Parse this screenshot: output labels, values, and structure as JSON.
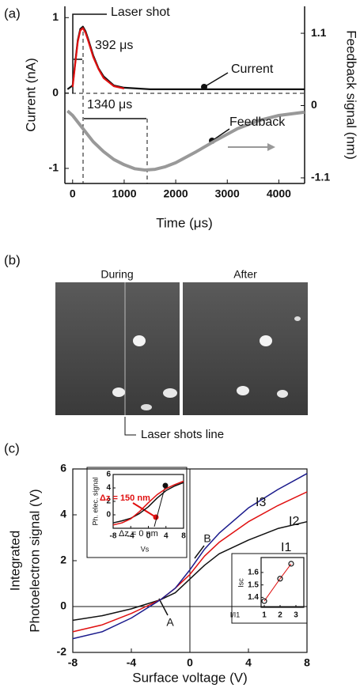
{
  "chart_data": [
    {
      "type": "line",
      "panel_label": "(a)",
      "xlabel": "Time (μs)",
      "ylabel": "Current (nA)",
      "y2label": "Feedback signal (nm)",
      "xlim": [
        -150,
        4500
      ],
      "xticks": [
        0,
        1000,
        2000,
        3000,
        4000
      ],
      "ylim": [
        -1.2,
        1.15
      ],
      "yticks": [
        -1,
        0,
        1
      ],
      "y2lim": [
        -1.185,
        1.51
      ],
      "y2ticks": [
        -1.1,
        0,
        1.1
      ],
      "annotations": [
        "Laser shot",
        "392 μs",
        "1340 μs",
        "Current",
        "Feedback"
      ],
      "series": [
        {
          "name": "Current",
          "color": "#111111",
          "x": [
            -100,
            0,
            50,
            100,
            150,
            200,
            250,
            300,
            400,
            500,
            600,
            800,
            1000,
            1500,
            2000,
            2500,
            3000,
            3500,
            4000,
            4500
          ],
          "values": [
            0.05,
            0.1,
            0.4,
            0.7,
            0.85,
            0.88,
            0.82,
            0.72,
            0.5,
            0.33,
            0.22,
            0.1,
            0.07,
            0.05,
            0.05,
            0.05,
            0.05,
            0.05,
            0.05,
            0.05
          ]
        },
        {
          "color": "#e01010",
          "x": [
            0,
            50,
            100,
            150,
            200,
            250,
            300,
            400,
            500,
            600,
            800,
            1000
          ],
          "values": [
            0.08,
            0.38,
            0.68,
            0.83,
            0.86,
            0.8,
            0.7,
            0.48,
            0.32,
            0.2,
            0.09,
            0.06
          ]
        },
        {
          "name": "Feedback",
          "color": "#999999",
          "axis": "y2",
          "x": [
            -100,
            0,
            200,
            400,
            600,
            800,
            1000,
            1200,
            1400,
            1600,
            1800,
            2000,
            2400,
            2800,
            3200,
            3600,
            4000,
            4500
          ],
          "values": [
            -0.08,
            -0.15,
            -0.35,
            -0.55,
            -0.7,
            -0.82,
            -0.9,
            -0.96,
            -0.98,
            -0.97,
            -0.93,
            -0.87,
            -0.7,
            -0.52,
            -0.35,
            -0.23,
            -0.15,
            -0.1
          ]
        }
      ]
    },
    {
      "type": "line",
      "panel_label": "(c)",
      "xlabel": "Surface voltage (V)",
      "ylabel": [
        "Integrated",
        "Photoelectron signal (V)"
      ],
      "xlim": [
        -8,
        8
      ],
      "xticks": [
        -8,
        -4,
        0,
        4,
        8
      ],
      "ylim": [
        -2,
        6
      ],
      "yticks": [
        -2,
        0,
        2,
        4,
        6
      ],
      "annotations": [
        "A",
        "B"
      ],
      "series": [
        {
          "name": "I1",
          "color": "#111111",
          "x": [
            -8,
            -6,
            -4,
            -3,
            -2,
            -1,
            0,
            1,
            2,
            4,
            6,
            8
          ],
          "values": [
            -0.6,
            -0.4,
            -0.1,
            0.1,
            0.3,
            0.6,
            1.2,
            1.8,
            2.3,
            2.9,
            3.4,
            3.7
          ]
        },
        {
          "name": "I2",
          "color": "#e01010",
          "x": [
            -8,
            -6,
            -4,
            -3,
            -2,
            -1,
            0,
            1,
            2,
            4,
            6,
            8
          ],
          "values": [
            -1.1,
            -0.8,
            -0.3,
            0,
            0.3,
            0.8,
            1.4,
            2.2,
            2.8,
            3.7,
            4.4,
            5.0
          ]
        },
        {
          "name": "I3",
          "color": "#1a1a8c",
          "x": [
            -8,
            -6,
            -4,
            -3,
            -2,
            -1,
            0,
            1,
            2,
            4,
            6,
            8
          ],
          "values": [
            -1.4,
            -1.1,
            -0.5,
            -0.1,
            0.3,
            0.8,
            1.6,
            2.5,
            3.2,
            4.3,
            5.1,
            5.8
          ]
        }
      ]
    },
    {
      "type": "line",
      "xlabel": "Vs",
      "ylabel": "Ph. elec. signal",
      "xlim": [
        -8,
        8
      ],
      "xticks": [
        -8,
        -4,
        0,
        4,
        8
      ],
      "ylim": [
        -2,
        6
      ],
      "yticks": [
        0,
        2,
        4,
        6
      ],
      "annotations": [
        "Δz = 150 nm",
        "Δz = 0 nm"
      ],
      "series": [
        {
          "color": "#111111",
          "x": [
            -8,
            -6,
            -4,
            -2,
            0,
            2,
            4,
            6,
            8
          ],
          "values": [
            -1.2,
            -0.9,
            -0.5,
            0.2,
            1.2,
            2.5,
            3.6,
            4.3,
            4.8
          ]
        },
        {
          "color": "#e01010",
          "x": [
            -8,
            -6,
            -4,
            -2,
            0,
            2,
            4,
            6,
            8
          ],
          "values": [
            -1.5,
            -1.2,
            -0.6,
            0.5,
            1.8,
            3.0,
            3.9,
            4.5,
            5.0
          ]
        }
      ]
    },
    {
      "type": "scatter",
      "xlabel": "I/I1",
      "ylabel": "Isc",
      "xlim": [
        0.8,
        3.5
      ],
      "xticks": [
        1,
        2,
        3
      ],
      "ylim": [
        1.32,
        1.72
      ],
      "yticks": [
        1.4,
        1.5,
        1.6
      ],
      "series": [
        {
          "color": "#e01010",
          "x": [
            1,
            2,
            2.7
          ],
          "values": [
            1.37,
            1.55,
            1.67
          ]
        }
      ]
    }
  ],
  "image_panel": {
    "label": "(b)",
    "captions": [
      "During",
      "After"
    ],
    "annotation": "Laser shots line"
  }
}
